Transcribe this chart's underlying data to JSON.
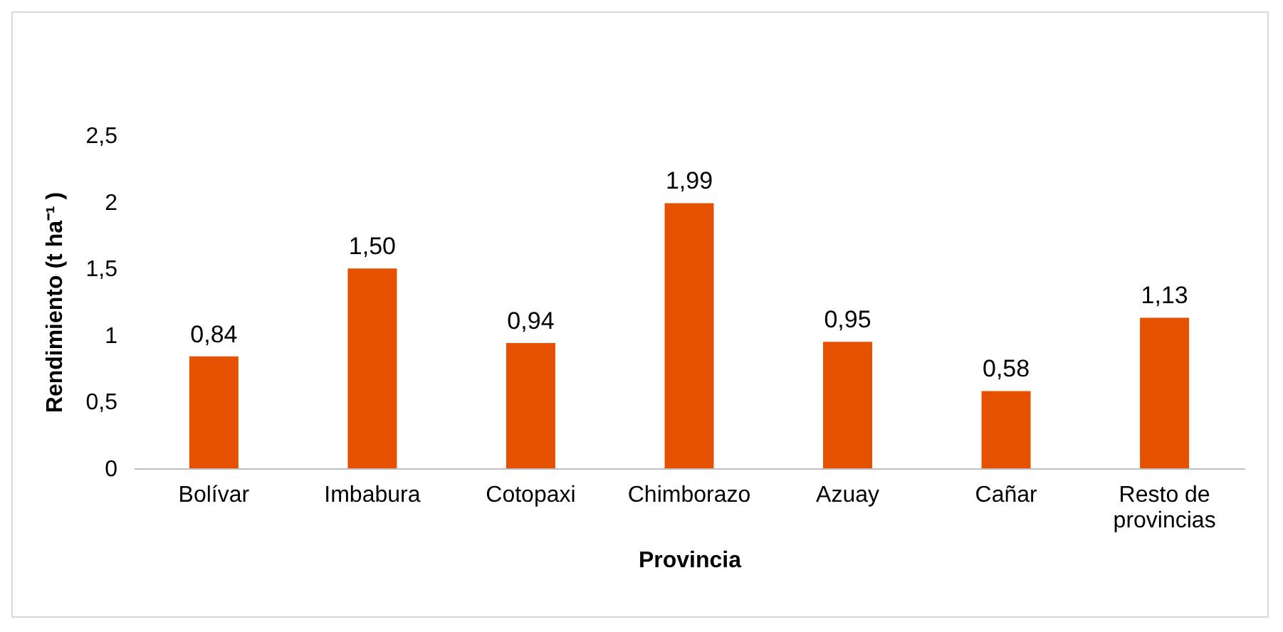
{
  "chart_data": {
    "type": "bar",
    "xlabel": "Provincia",
    "ylabel": "Rendimiento (t ha⁻¹ )",
    "categories": [
      "Bolívar",
      "Imbabura",
      "Cotopaxi",
      "Chimborazo",
      "Azuay",
      "Cañar",
      "Resto de provincias"
    ],
    "values": [
      0.84,
      1.5,
      0.94,
      1.99,
      0.95,
      0.58,
      1.13
    ],
    "value_labels": [
      "0,84",
      "1,50",
      "0,94",
      "1,99",
      "0,95",
      "0,58",
      "1,13"
    ],
    "color": "#e65100",
    "ylim": [
      0,
      2.5
    ],
    "yticks": [
      0,
      {
        "value": 0.5,
        "label": "0,5"
      },
      1,
      {
        "value": 1.5,
        "label": "1,5"
      },
      2,
      {
        "value": 2.5,
        "label": "2,5"
      }
    ],
    "grid": false
  }
}
